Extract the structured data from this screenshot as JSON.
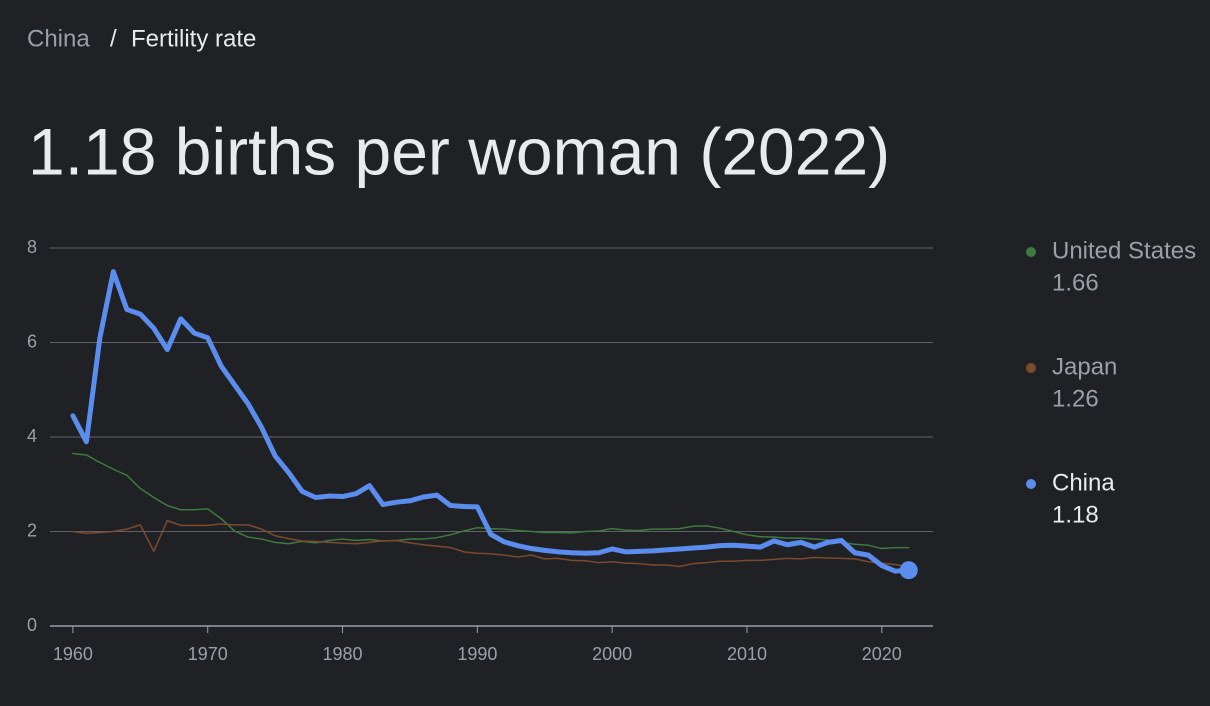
{
  "breadcrumb": {
    "parent": "China",
    "separator": "/",
    "current": "Fertility rate"
  },
  "chart_data": {
    "type": "line",
    "title": "1.18 births per woman (2022)",
    "x": [
      1960,
      1961,
      1962,
      1963,
      1964,
      1965,
      1966,
      1967,
      1968,
      1969,
      1970,
      1971,
      1972,
      1973,
      1974,
      1975,
      1976,
      1977,
      1978,
      1979,
      1980,
      1981,
      1982,
      1983,
      1984,
      1985,
      1986,
      1987,
      1988,
      1989,
      1990,
      1991,
      1992,
      1993,
      1994,
      1995,
      1996,
      1997,
      1998,
      1999,
      2000,
      2001,
      2002,
      2003,
      2004,
      2005,
      2006,
      2007,
      2008,
      2009,
      2010,
      2011,
      2012,
      2013,
      2014,
      2015,
      2016,
      2017,
      2018,
      2019,
      2020,
      2021,
      2022
    ],
    "series": [
      {
        "name": "United States",
        "color": "#3e7a40",
        "emphasis": false,
        "values": [
          3.65,
          3.62,
          3.46,
          3.32,
          3.19,
          2.91,
          2.72,
          2.55,
          2.46,
          2.46,
          2.48,
          2.27,
          2.01,
          1.88,
          1.84,
          1.77,
          1.74,
          1.79,
          1.76,
          1.81,
          1.84,
          1.81,
          1.83,
          1.8,
          1.81,
          1.84,
          1.84,
          1.87,
          1.93,
          2.01,
          2.08,
          2.06,
          2.05,
          2.02,
          2.0,
          1.98,
          1.98,
          1.97,
          2.0,
          2.01,
          2.06,
          2.03,
          2.02,
          2.05,
          2.05,
          2.06,
          2.11,
          2.12,
          2.07,
          2.0,
          1.93,
          1.89,
          1.88,
          1.86,
          1.86,
          1.84,
          1.82,
          1.77,
          1.73,
          1.71,
          1.64,
          1.66,
          1.66
        ]
      },
      {
        "name": "Japan",
        "color": "#7c4a2d",
        "emphasis": false,
        "values": [
          2.0,
          1.96,
          1.98,
          2.0,
          2.05,
          2.14,
          1.58,
          2.23,
          2.13,
          2.13,
          2.13,
          2.16,
          2.14,
          2.14,
          2.05,
          1.91,
          1.85,
          1.8,
          1.79,
          1.77,
          1.75,
          1.74,
          1.77,
          1.8,
          1.81,
          1.76,
          1.72,
          1.69,
          1.66,
          1.57,
          1.54,
          1.53,
          1.5,
          1.46,
          1.5,
          1.42,
          1.43,
          1.39,
          1.38,
          1.34,
          1.36,
          1.33,
          1.32,
          1.29,
          1.29,
          1.26,
          1.32,
          1.34,
          1.37,
          1.37,
          1.39,
          1.39,
          1.41,
          1.43,
          1.42,
          1.45,
          1.44,
          1.43,
          1.42,
          1.36,
          1.33,
          1.3,
          1.26
        ]
      },
      {
        "name": "China",
        "color": "#5b8def",
        "emphasis": true,
        "values": [
          4.45,
          3.9,
          6.1,
          7.5,
          6.7,
          6.6,
          6.3,
          5.85,
          6.5,
          6.2,
          6.1,
          5.5,
          5.1,
          4.7,
          4.2,
          3.6,
          3.25,
          2.85,
          2.72,
          2.75,
          2.74,
          2.8,
          2.97,
          2.57,
          2.62,
          2.65,
          2.73,
          2.77,
          2.55,
          2.53,
          2.52,
          1.94,
          1.78,
          1.7,
          1.64,
          1.6,
          1.57,
          1.55,
          1.54,
          1.55,
          1.63,
          1.57,
          1.58,
          1.59,
          1.61,
          1.63,
          1.65,
          1.67,
          1.7,
          1.71,
          1.69,
          1.67,
          1.8,
          1.72,
          1.77,
          1.67,
          1.77,
          1.81,
          1.55,
          1.5,
          1.28,
          1.16,
          1.18
        ]
      }
    ],
    "xlim": [
      1958.3,
      2023.8
    ],
    "xticks": [
      1960,
      1970,
      1980,
      1990,
      2000,
      2010,
      2020
    ],
    "ylim": [
      0,
      8
    ],
    "yticks": [
      0,
      2,
      4,
      6,
      8
    ],
    "grid": true
  }
}
